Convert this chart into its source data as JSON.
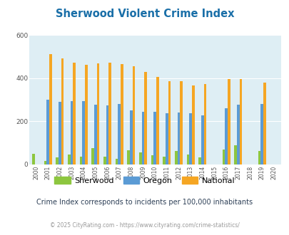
{
  "title": "Sherwood Violent Crime Index",
  "years": [
    2000,
    2001,
    2002,
    2003,
    2004,
    2005,
    2006,
    2007,
    2008,
    2009,
    2010,
    2011,
    2012,
    2013,
    2014,
    2015,
    2016,
    2017,
    2018,
    2019,
    2020
  ],
  "sherwood": [
    48,
    18,
    33,
    47,
    37,
    75,
    38,
    28,
    65,
    55,
    42,
    37,
    62,
    47,
    32,
    0,
    70,
    88,
    0,
    62,
    0
  ],
  "oregon": [
    0,
    302,
    290,
    293,
    295,
    278,
    275,
    280,
    252,
    245,
    243,
    238,
    240,
    238,
    228,
    0,
    260,
    278,
    0,
    280,
    0
  ],
  "national": [
    0,
    512,
    494,
    472,
    462,
    469,
    474,
    465,
    455,
    429,
    405,
    388,
    388,
    368,
    373,
    0,
    397,
    396,
    0,
    380,
    0
  ],
  "sherwood_color": "#8dc63f",
  "oregon_color": "#5b9bd5",
  "national_color": "#f5a623",
  "bg_color": "#deeef4",
  "ylim": [
    0,
    600
  ],
  "yticks": [
    0,
    200,
    400,
    600
  ],
  "subtitle": "Crime Index corresponds to incidents per 100,000 inhabitants",
  "footer": "© 2025 CityRating.com - https://www.cityrating.com/crime-statistics/",
  "title_color": "#1a6fa8",
  "subtitle_color": "#2e4057",
  "footer_color": "#999999"
}
